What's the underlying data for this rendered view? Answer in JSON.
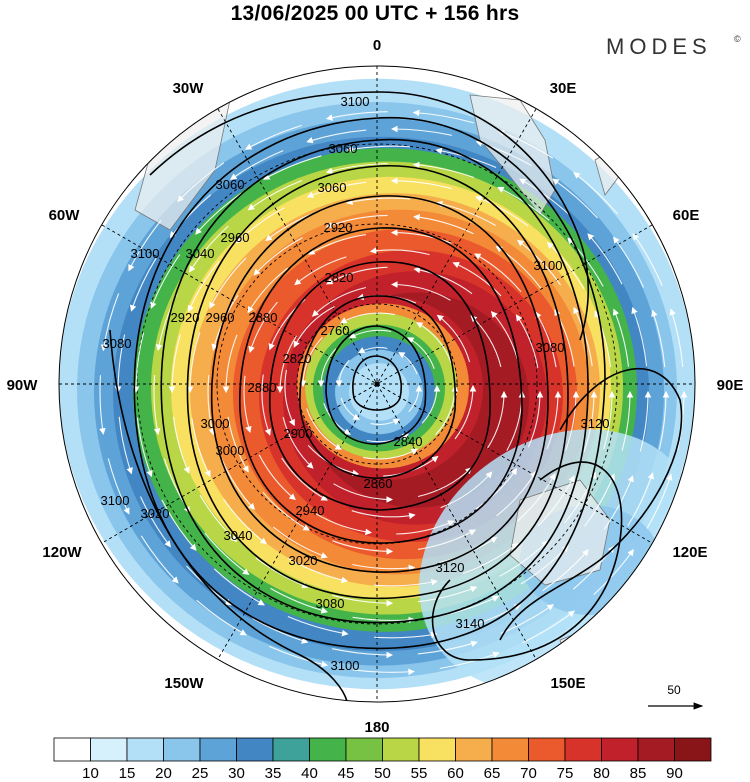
{
  "title": "13/06/2025  00 UTC  + 156 hrs",
  "brand": "MODES",
  "brand_mark": "©",
  "longitude_labels": [
    "0",
    "30E",
    "60E",
    "90E",
    "120E",
    "150E",
    "180",
    "150W",
    "120W",
    "90W",
    "60W",
    "30W"
  ],
  "contour_labels": [
    "3100",
    "3060",
    "3060",
    "3060",
    "2920",
    "2960",
    "2820",
    "2760",
    "3040",
    "3080",
    "2920",
    "2960",
    "2880",
    "2820",
    "3100",
    "3100",
    "3080",
    "2840",
    "2880",
    "3000",
    "2940",
    "2860",
    "3040",
    "3020",
    "3120",
    "3120",
    "3080",
    "3140",
    "3100",
    "3100",
    "3020",
    "3000",
    "2900"
  ],
  "reference_vector_label": "50",
  "colorbar_labels": [
    "10",
    "15",
    "20",
    "25",
    "30",
    "35",
    "40",
    "45",
    "50",
    "55",
    "60",
    "65",
    "70",
    "75",
    "80",
    "85",
    "90"
  ],
  "colors": {
    "bins": [
      "#ffffff",
      "#d6f0fc",
      "#b3e0f7",
      "#8ac5ec",
      "#5ea3d7",
      "#4286c4",
      "#3fa29a",
      "#43b34a",
      "#77c243",
      "#b8d646",
      "#f8e060",
      "#f6ae4d",
      "#f38a38",
      "#ea5a2c",
      "#d8332b",
      "#c0212a",
      "#a51b24",
      "#8a1518"
    ],
    "land": "#eeeeee",
    "contour": "#000000",
    "streamline": "#ffffff"
  }
}
